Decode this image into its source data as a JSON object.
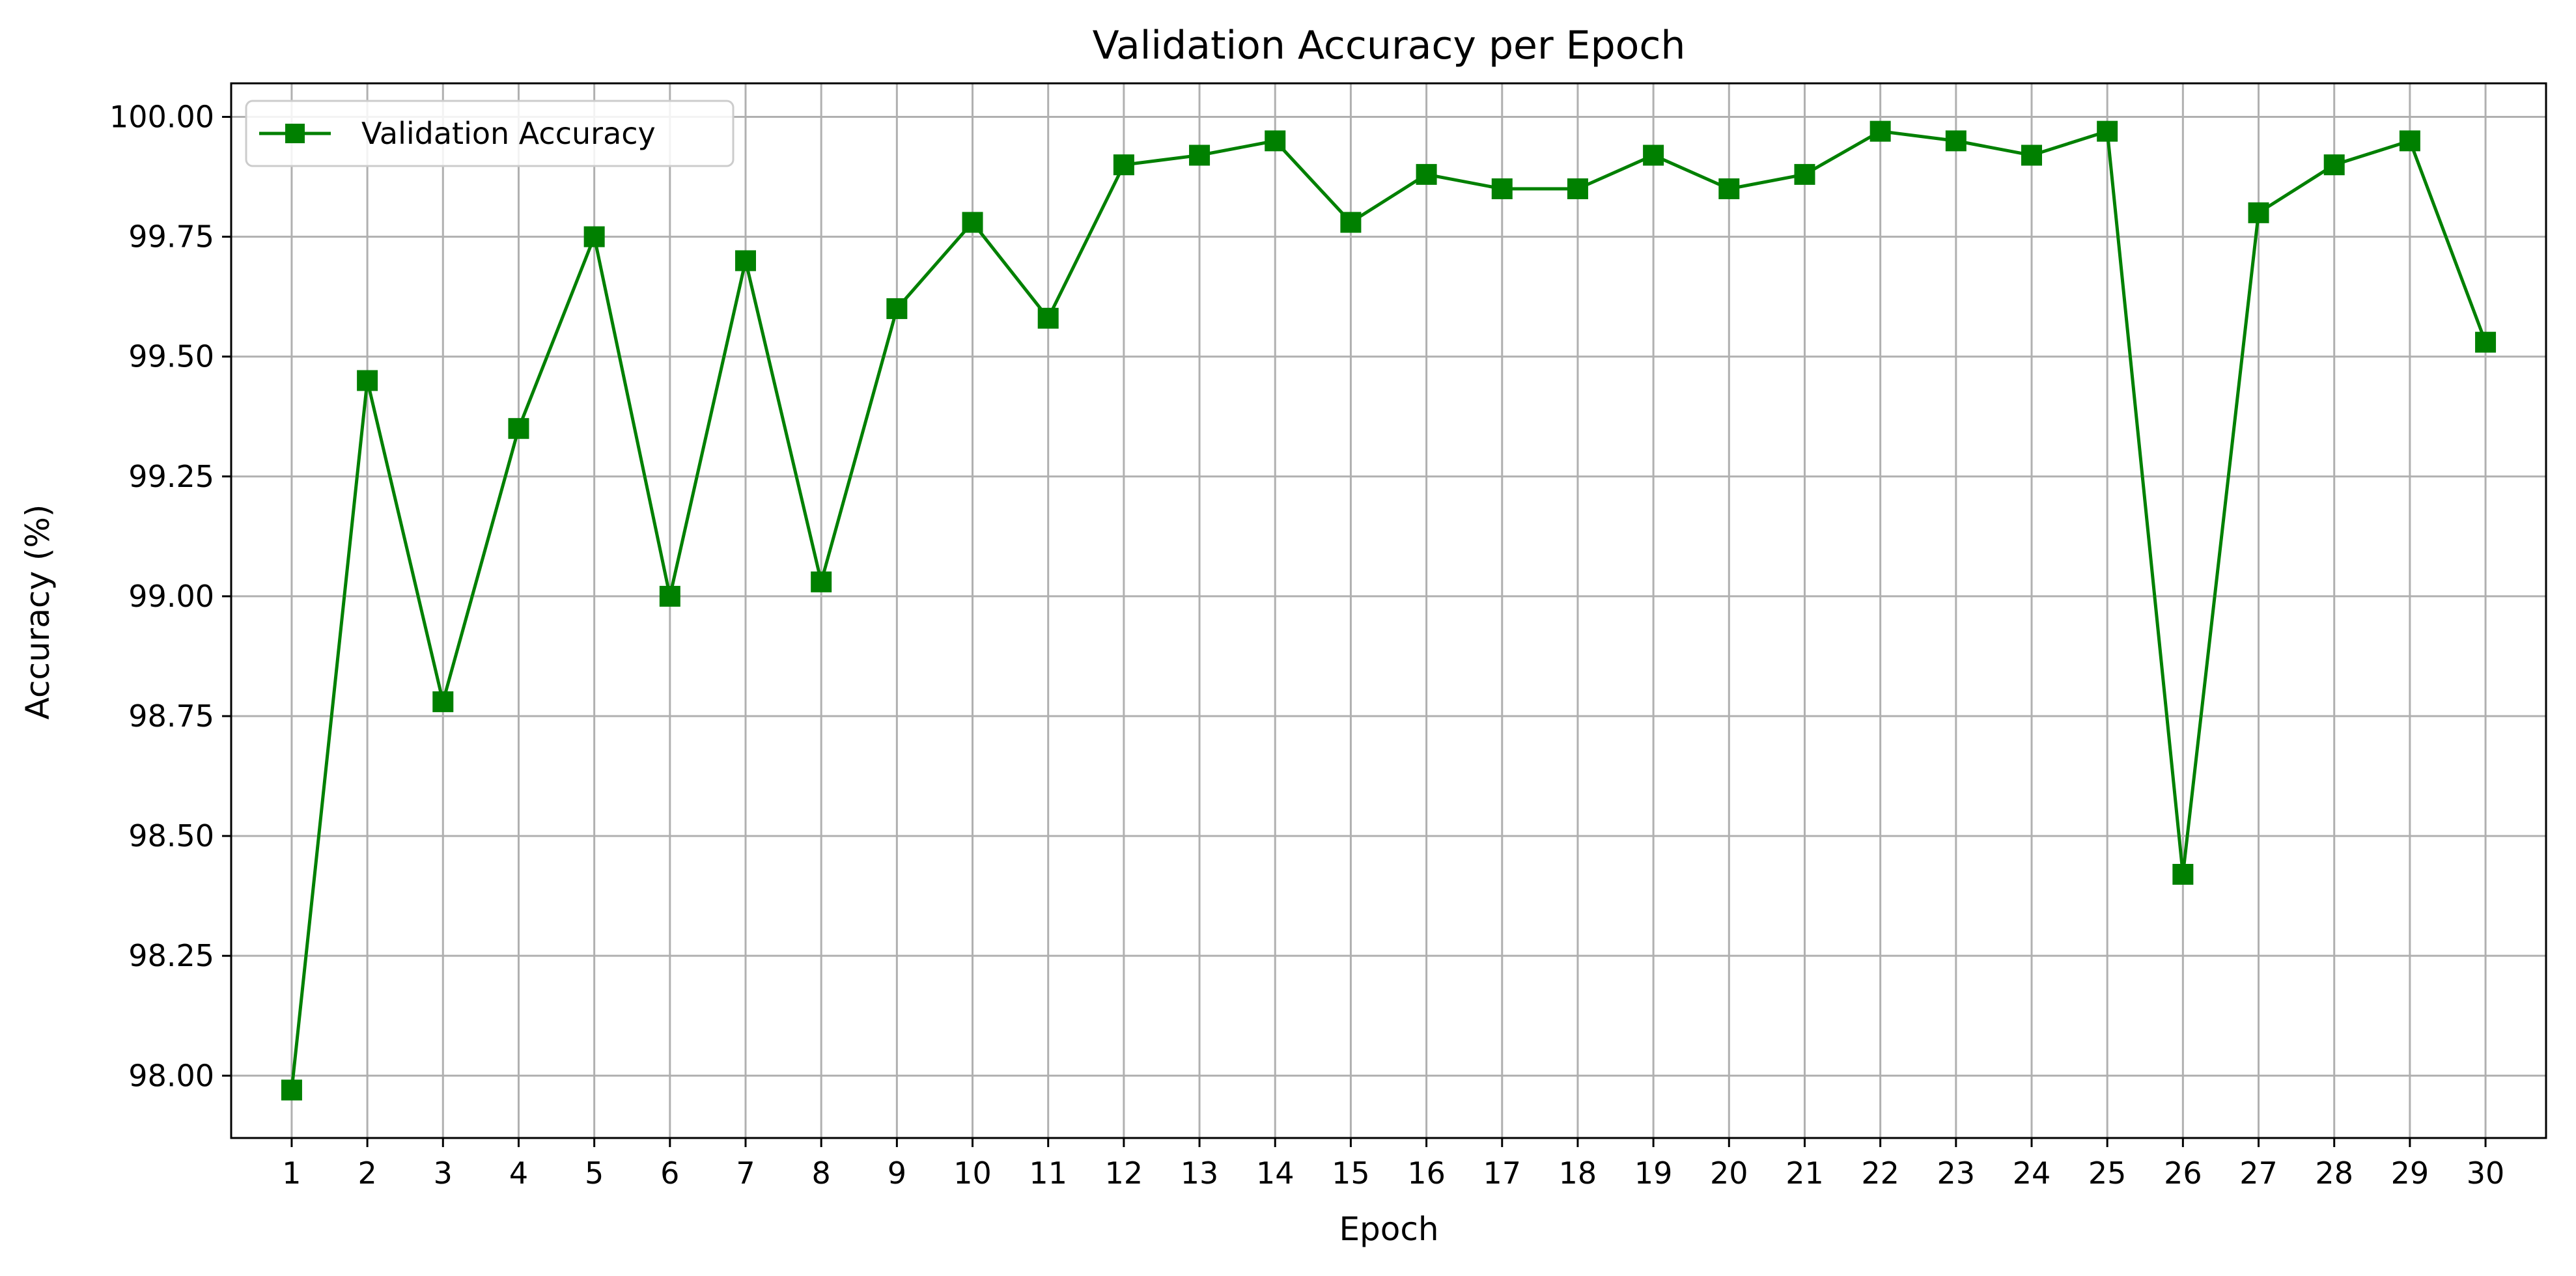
{
  "chart_data": {
    "type": "line",
    "title": "Validation Accuracy per Epoch",
    "xlabel": "Epoch",
    "ylabel": "Accuracy (%)",
    "x": [
      1,
      2,
      3,
      4,
      5,
      6,
      7,
      8,
      9,
      10,
      11,
      12,
      13,
      14,
      15,
      16,
      17,
      18,
      19,
      20,
      21,
      22,
      23,
      24,
      25,
      26,
      27,
      28,
      29,
      30
    ],
    "series": [
      {
        "name": "Validation Accuracy",
        "color": "#008000",
        "marker": "square",
        "values": [
          97.97,
          99.45,
          98.78,
          99.35,
          99.75,
          99.0,
          99.7,
          99.03,
          99.6,
          99.78,
          99.58,
          99.9,
          99.92,
          99.95,
          99.78,
          99.88,
          99.85,
          99.85,
          99.92,
          99.85,
          99.88,
          99.97,
          99.95,
          99.92,
          99.97,
          98.42,
          99.8,
          99.9,
          99.95,
          99.53
        ]
      }
    ],
    "xticks": [
      "1",
      "2",
      "3",
      "4",
      "5",
      "6",
      "7",
      "8",
      "9",
      "10",
      "11",
      "12",
      "13",
      "14",
      "15",
      "16",
      "17",
      "18",
      "19",
      "20",
      "21",
      "22",
      "23",
      "24",
      "25",
      "26",
      "27",
      "28",
      "29",
      "30"
    ],
    "yticks": [
      "98.00",
      "98.25",
      "98.50",
      "98.75",
      "99.00",
      "99.25",
      "99.50",
      "99.75",
      "100.00"
    ],
    "ytick_values": [
      98.0,
      98.25,
      98.5,
      98.75,
      99.0,
      99.25,
      99.5,
      99.75,
      100.0
    ],
    "xlim": [
      0.2,
      30.8
    ],
    "ylim": [
      97.87,
      100.07
    ],
    "grid": true,
    "legend_position": "top-left"
  }
}
